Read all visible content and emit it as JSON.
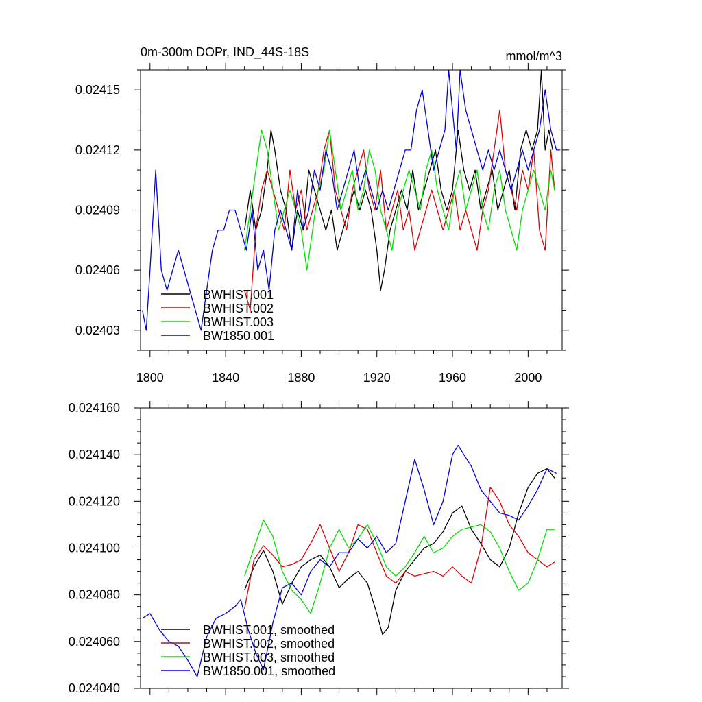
{
  "colors": {
    "BWHIST.001": "#000000",
    "BWHIST.002": "#e00000",
    "BWHIST.003": "#00e000",
    "BW1850.001": "#0000e0"
  },
  "chart_data": [
    {
      "type": "line",
      "title": "0m-300m DOPr, IND_44S-18S",
      "units": "mmol/m^3",
      "xlim": [
        1795,
        2018
      ],
      "ylim": [
        0.02402,
        0.02416
      ],
      "xticks": [
        1800,
        1840,
        1880,
        1920,
        1960,
        2000
      ],
      "xtick_labels": [
        "1800",
        "1840",
        "1880",
        "1920",
        "1960",
        "2000"
      ],
      "yticks": [
        0.02403,
        0.02406,
        0.02409,
        0.02412,
        0.02415
      ],
      "ytick_labels": [
        "0.02403",
        "0.02406",
        "0.02409",
        "0.02412",
        "0.02415"
      ],
      "legend": [
        "BWHIST.001",
        "BWHIST.002",
        "BWHIST.003",
        "BW1850.001"
      ],
      "legend_position": "lower-left",
      "series": [
        {
          "name": "BWHIST.001",
          "x": [
            1850,
            1853,
            1856,
            1859,
            1862,
            1864,
            1866,
            1869,
            1872,
            1875,
            1878,
            1881,
            1884,
            1887,
            1890,
            1893,
            1896,
            1899,
            1902,
            1905,
            1908,
            1911,
            1914,
            1917,
            1920,
            1922,
            1924,
            1927,
            1930,
            1933,
            1936,
            1939,
            1942,
            1945,
            1948,
            1951,
            1954,
            1957,
            1960,
            1963,
            1966,
            1969,
            1972,
            1975,
            1978,
            1981,
            1984,
            1987,
            1990,
            1993,
            1996,
            1999,
            2002,
            2005,
            2007,
            2009,
            2011,
            2013
          ],
          "y": [
            0.02408,
            0.0241,
            0.02408,
            0.02409,
            0.02411,
            0.02413,
            0.02412,
            0.0241,
            0.02409,
            0.02407,
            0.02409,
            0.02408,
            0.02411,
            0.0241,
            0.02409,
            0.02408,
            0.02409,
            0.02407,
            0.02408,
            0.02409,
            0.0241,
            0.02409,
            0.0241,
            0.02409,
            0.02407,
            0.02405,
            0.02406,
            0.02408,
            0.02409,
            0.0241,
            0.02409,
            0.02411,
            0.02409,
            0.0241,
            0.02411,
            0.02412,
            0.0241,
            0.02409,
            0.0241,
            0.02413,
            0.02411,
            0.0241,
            0.02411,
            0.02409,
            0.0241,
            0.02411,
            0.02409,
            0.0241,
            0.02411,
            0.02409,
            0.02412,
            0.02413,
            0.02412,
            0.02413,
            0.02416,
            0.02412,
            0.02413,
            0.02412
          ]
        },
        {
          "name": "BWHIST.002",
          "x": [
            1850,
            1853,
            1856,
            1859,
            1862,
            1865,
            1868,
            1871,
            1874,
            1877,
            1880,
            1883,
            1886,
            1889,
            1892,
            1895,
            1898,
            1901,
            1904,
            1907,
            1910,
            1913,
            1916,
            1919,
            1922,
            1925,
            1928,
            1931,
            1934,
            1937,
            1940,
            1943,
            1946,
            1949,
            1952,
            1955,
            1958,
            1961,
            1964,
            1967,
            1970,
            1973,
            1976,
            1979,
            1982,
            1985,
            1988,
            1991,
            1994,
            1997,
            2000,
            2003,
            2006,
            2009,
            2012,
            2014
          ],
          "y": [
            0.02405,
            0.02404,
            0.02408,
            0.0241,
            0.02411,
            0.0241,
            0.02409,
            0.02408,
            0.02411,
            0.02409,
            0.0241,
            0.02408,
            0.02409,
            0.0241,
            0.02412,
            0.02413,
            0.0241,
            0.02409,
            0.02408,
            0.0241,
            0.02411,
            0.02412,
            0.0241,
            0.02409,
            0.02411,
            0.02408,
            0.02409,
            0.0241,
            0.02408,
            0.02409,
            0.02407,
            0.02408,
            0.02409,
            0.0241,
            0.02409,
            0.02408,
            0.02409,
            0.0241,
            0.02408,
            0.02409,
            0.02408,
            0.02407,
            0.02409,
            0.0241,
            0.02412,
            0.02414,
            0.02411,
            0.0241,
            0.02409,
            0.02411,
            0.0241,
            0.02412,
            0.02408,
            0.02407,
            0.02412,
            0.0241
          ]
        },
        {
          "name": "BWHIST.003",
          "x": [
            1850,
            1853,
            1856,
            1859,
            1862,
            1865,
            1868,
            1871,
            1874,
            1877,
            1880,
            1883,
            1886,
            1889,
            1892,
            1895,
            1898,
            1901,
            1904,
            1907,
            1910,
            1913,
            1916,
            1919,
            1922,
            1925,
            1928,
            1931,
            1934,
            1937,
            1940,
            1943,
            1946,
            1949,
            1952,
            1955,
            1958,
            1961,
            1964,
            1967,
            1970,
            1973,
            1976,
            1979,
            1982,
            1985,
            1988,
            1991,
            1994,
            1997,
            2000,
            2003,
            2006,
            2009,
            2012,
            2014
          ],
          "y": [
            0.02407,
            0.02409,
            0.02411,
            0.02413,
            0.02412,
            0.0241,
            0.02408,
            0.02409,
            0.0241,
            0.02409,
            0.02408,
            0.02406,
            0.02408,
            0.0241,
            0.02411,
            0.02413,
            0.02411,
            0.02409,
            0.0241,
            0.02411,
            0.02409,
            0.0241,
            0.02412,
            0.02411,
            0.02409,
            0.02408,
            0.02407,
            0.02409,
            0.0241,
            0.02411,
            0.0241,
            0.02409,
            0.02411,
            0.02412,
            0.0241,
            0.02409,
            0.02408,
            0.0241,
            0.02411,
            0.02409,
            0.0241,
            0.02411,
            0.02409,
            0.02408,
            0.0241,
            0.02411,
            0.02409,
            0.02408,
            0.02407,
            0.02409,
            0.0241,
            0.02411,
            0.0241,
            0.02409,
            0.02411,
            0.0241
          ]
        },
        {
          "name": "BW1850.001",
          "x": [
            1796,
            1798,
            1800,
            1803,
            1806,
            1809,
            1812,
            1815,
            1818,
            1821,
            1824,
            1827,
            1830,
            1833,
            1836,
            1839,
            1842,
            1845,
            1848,
            1851,
            1854,
            1857,
            1860,
            1863,
            1866,
            1869,
            1872,
            1875,
            1878,
            1881,
            1884,
            1887,
            1890,
            1893,
            1896,
            1899,
            1902,
            1905,
            1908,
            1911,
            1914,
            1917,
            1920,
            1923,
            1926,
            1929,
            1932,
            1935,
            1938,
            1941,
            1944,
            1947,
            1950,
            1953,
            1956,
            1958,
            1960,
            1962,
            1964,
            1967,
            1970,
            1973,
            1976,
            1979,
            1982,
            1985,
            1988,
            1991,
            1994,
            1997,
            2000,
            2003,
            2006,
            2009,
            2012,
            2015,
            2017
          ],
          "y": [
            0.02404,
            0.02403,
            0.02406,
            0.02411,
            0.02406,
            0.02405,
            0.02406,
            0.02407,
            0.02406,
            0.02405,
            0.02404,
            0.02403,
            0.02405,
            0.02407,
            0.02408,
            0.02408,
            0.02409,
            0.02409,
            0.02408,
            0.02407,
            0.02409,
            0.02406,
            0.02407,
            0.02405,
            0.02408,
            0.02409,
            0.02408,
            0.02407,
            0.0241,
            0.02408,
            0.02409,
            0.02411,
            0.0241,
            0.02412,
            0.02411,
            0.02409,
            0.0241,
            0.02411,
            0.02412,
            0.0241,
            0.02411,
            0.0241,
            0.02409,
            0.0241,
            0.02409,
            0.0241,
            0.02411,
            0.02412,
            0.02412,
            0.02414,
            0.02415,
            0.02413,
            0.02411,
            0.02412,
            0.02413,
            0.02416,
            0.02414,
            0.02412,
            0.02416,
            0.02414,
            0.02413,
            0.02412,
            0.02411,
            0.02412,
            0.02411,
            0.02412,
            0.02411,
            0.0241,
            0.02411,
            0.02412,
            0.02411,
            0.02412,
            0.02413,
            0.02415,
            0.02413,
            0.02412,
            0.02412
          ]
        }
      ]
    },
    {
      "type": "line",
      "title": "",
      "xlim": [
        1795,
        2018
      ],
      "ylim": [
        0.02404,
        0.02416
      ],
      "xticks": [
        1800,
        1840,
        1880,
        1920,
        1960,
        2000
      ],
      "yticks": [
        0.02404,
        0.02406,
        0.02408,
        0.0241,
        0.02412,
        0.02414,
        0.02416
      ],
      "ytick_labels": [
        "0.024040",
        "0.024060",
        "0.024080",
        "0.024100",
        "0.024120",
        "0.024140",
        "0.024160"
      ],
      "legend": [
        "BWHIST.001, smoothed",
        "BWHIST.002, smoothed",
        "BWHIST.003, smoothed",
        "BW1850.001, smoothed"
      ],
      "legend_position": "lower-left",
      "series": [
        {
          "name": "BWHIST.001, smoothed",
          "color_key": "BWHIST.001",
          "x": [
            1850,
            1855,
            1860,
            1865,
            1870,
            1875,
            1880,
            1885,
            1890,
            1895,
            1900,
            1905,
            1910,
            1915,
            1920,
            1923,
            1926,
            1930,
            1935,
            1940,
            1945,
            1950,
            1955,
            1960,
            1965,
            1970,
            1975,
            1980,
            1985,
            1990,
            1995,
            2000,
            2005,
            2010,
            2014
          ],
          "y": [
            0.024082,
            0.024092,
            0.024099,
            0.02409,
            0.024076,
            0.024085,
            0.024092,
            0.024095,
            0.024097,
            0.024092,
            0.024083,
            0.024087,
            0.02409,
            0.024085,
            0.024072,
            0.024063,
            0.024066,
            0.024082,
            0.02409,
            0.024095,
            0.0241,
            0.024102,
            0.024107,
            0.024115,
            0.024118,
            0.024108,
            0.024102,
            0.024095,
            0.024092,
            0.0241,
            0.024115,
            0.024126,
            0.024132,
            0.024134,
            0.02413
          ]
        },
        {
          "name": "BWHIST.002, smoothed",
          "color_key": "BWHIST.002",
          "x": [
            1850,
            1855,
            1860,
            1865,
            1870,
            1875,
            1880,
            1885,
            1890,
            1895,
            1900,
            1905,
            1910,
            1915,
            1920,
            1925,
            1930,
            1935,
            1940,
            1945,
            1950,
            1955,
            1960,
            1965,
            1970,
            1975,
            1980,
            1985,
            1990,
            1995,
            2000,
            2005,
            2010,
            2014
          ],
          "y": [
            0.024074,
            0.024095,
            0.024101,
            0.024097,
            0.024092,
            0.024093,
            0.024095,
            0.024102,
            0.02411,
            0.0241,
            0.02409,
            0.024098,
            0.02411,
            0.024108,
            0.024098,
            0.024088,
            0.024085,
            0.02409,
            0.024088,
            0.024089,
            0.02409,
            0.024088,
            0.024092,
            0.024088,
            0.024085,
            0.0241,
            0.024126,
            0.02412,
            0.02411,
            0.024105,
            0.024098,
            0.024095,
            0.024092,
            0.024094
          ]
        },
        {
          "name": "BWHIST.003, smoothed",
          "color_key": "BWHIST.003",
          "x": [
            1850,
            1855,
            1860,
            1865,
            1870,
            1875,
            1880,
            1885,
            1890,
            1895,
            1900,
            1905,
            1910,
            1915,
            1920,
            1925,
            1930,
            1935,
            1940,
            1945,
            1950,
            1955,
            1960,
            1965,
            1970,
            1975,
            1980,
            1985,
            1990,
            1995,
            2000,
            2005,
            2010,
            2014
          ],
          "y": [
            0.024088,
            0.0241,
            0.024112,
            0.024105,
            0.02409,
            0.024082,
            0.024078,
            0.024072,
            0.024085,
            0.0241,
            0.024108,
            0.0241,
            0.024104,
            0.02411,
            0.024102,
            0.024092,
            0.024088,
            0.024092,
            0.024098,
            0.024105,
            0.024098,
            0.0241,
            0.024105,
            0.024108,
            0.024109,
            0.02411,
            0.024107,
            0.0241,
            0.02409,
            0.024082,
            0.024085,
            0.024095,
            0.024108,
            0.024108
          ]
        },
        {
          "name": "BW1850.001, smoothed",
          "color_key": "BW1850.001",
          "x": [
            1796,
            1800,
            1805,
            1810,
            1815,
            1820,
            1825,
            1830,
            1835,
            1840,
            1845,
            1848,
            1852,
            1856,
            1860,
            1865,
            1870,
            1875,
            1880,
            1885,
            1890,
            1895,
            1900,
            1905,
            1910,
            1915,
            1920,
            1925,
            1930,
            1935,
            1940,
            1945,
            1950,
            1955,
            1960,
            1963,
            1966,
            1970,
            1975,
            1980,
            1985,
            1990,
            1995,
            2000,
            2005,
            2010,
            2015
          ],
          "y": [
            0.02407,
            0.024072,
            0.024065,
            0.02406,
            0.024058,
            0.024052,
            0.024045,
            0.024062,
            0.02407,
            0.024072,
            0.024075,
            0.024078,
            0.024065,
            0.024055,
            0.024048,
            0.024068,
            0.024083,
            0.024085,
            0.02408,
            0.02409,
            0.024095,
            0.024092,
            0.024098,
            0.024098,
            0.024104,
            0.0241,
            0.024105,
            0.024098,
            0.024102,
            0.02412,
            0.024138,
            0.024125,
            0.02411,
            0.02412,
            0.02414,
            0.024144,
            0.02414,
            0.024135,
            0.024125,
            0.02412,
            0.024115,
            0.024114,
            0.024112,
            0.024118,
            0.024125,
            0.024134,
            0.024132
          ]
        }
      ]
    }
  ]
}
